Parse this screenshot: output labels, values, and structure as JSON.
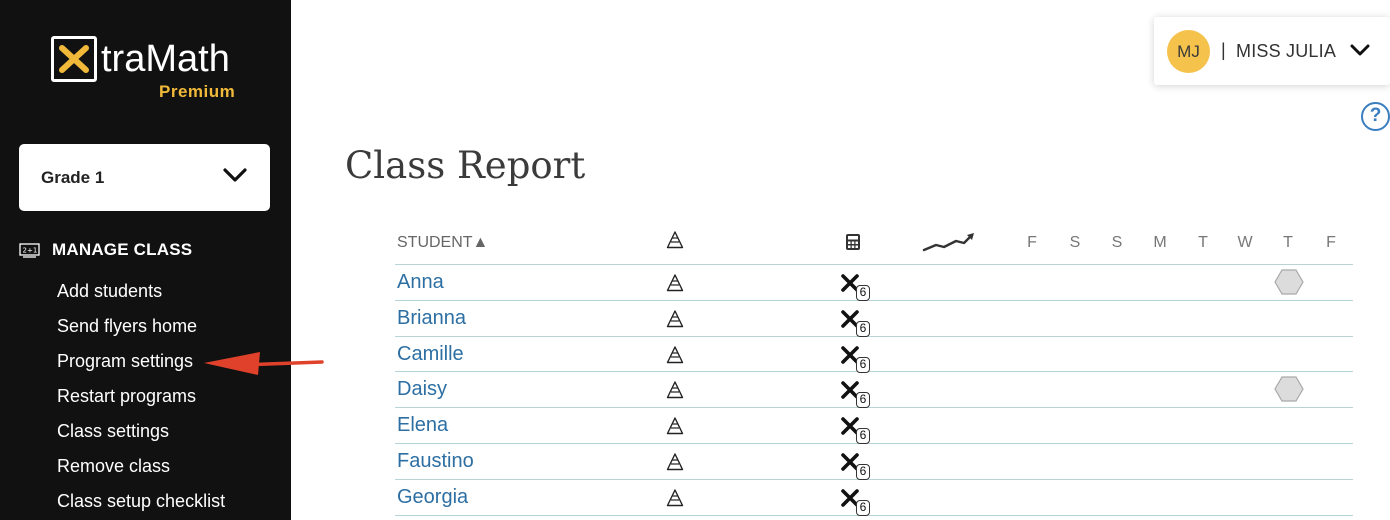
{
  "app": {
    "logo_text": "traMath",
    "logo_x": "X",
    "logo_sub": "Premium"
  },
  "grade_select": {
    "value": "Grade 1"
  },
  "manage": {
    "title": "MANAGE CLASS",
    "items": [
      {
        "label": "Add students"
      },
      {
        "label": "Send flyers home"
      },
      {
        "label": "Program settings"
      },
      {
        "label": "Restart programs"
      },
      {
        "label": "Class settings"
      },
      {
        "label": "Remove class"
      },
      {
        "label": "Class setup checklist"
      }
    ]
  },
  "user": {
    "initials": "MJ",
    "separator": "|",
    "name": "MISS JULIA"
  },
  "help": {
    "label": "?"
  },
  "page": {
    "title": "Class Report"
  },
  "table": {
    "student_header": "STUDENT▲",
    "days": [
      "F",
      "S",
      "S",
      "M",
      "T",
      "W",
      "T",
      "F"
    ],
    "badge_number": "6",
    "rows": [
      {
        "name": "Anna",
        "hexagon": true
      },
      {
        "name": "Brianna",
        "hexagon": false
      },
      {
        "name": "Camille",
        "hexagon": false
      },
      {
        "name": "Daisy",
        "hexagon": true
      },
      {
        "name": "Elena",
        "hexagon": false
      },
      {
        "name": "Faustino",
        "hexagon": false
      },
      {
        "name": "Georgia",
        "hexagon": false
      }
    ]
  },
  "colors": {
    "sidebar_bg": "#111111",
    "accent_gold": "#f0b93a",
    "avatar": "#f5c24c",
    "link_blue": "#2d6fa3",
    "help_blue": "#3a7ebf",
    "arrow_red": "#e0412b",
    "row_divider": "#b7d4d6"
  },
  "icons": {
    "accuracy": "accuracy-a-icon",
    "calculator": "calculator-icon",
    "trend": "trend-line-icon",
    "operation": "multiplication-icon",
    "progress": "hexagon-icon"
  }
}
